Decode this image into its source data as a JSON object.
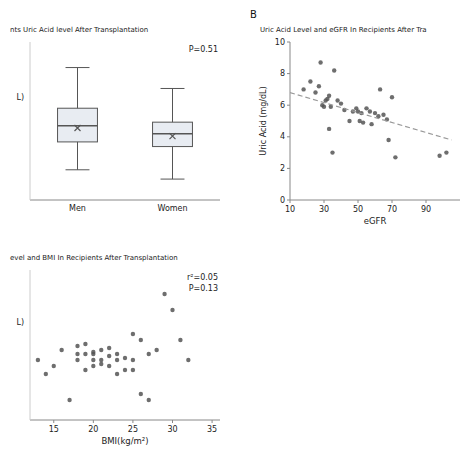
{
  "chart_data": [
    {
      "type": "box",
      "title": "nts Uric Acid level After Transplantation",
      "ylabel": "L)",
      "annotations": [
        "P=0.51"
      ],
      "categories": [
        "Men",
        "Women"
      ],
      "boxes": [
        {
          "median": 6.2,
          "q1": 5.5,
          "q3": 6.95,
          "whisker_low": 4.3,
          "whisker_high": 8.7,
          "mean": 6.1
        },
        {
          "median": 5.85,
          "q1": 5.3,
          "q3": 6.35,
          "whisker_low": 3.9,
          "whisker_high": 7.8,
          "mean": 5.75
        }
      ],
      "color": "#555555",
      "ylim": [
        3.0,
        9.8
      ],
      "tick_labels": "x"
    },
    {
      "type": "scatter",
      "title": "Uric Acid Level and eGFR In Recipients After Tra",
      "annotations": [
        "B"
      ],
      "xlabel": "eGFR",
      "ylabel": "Uric Acid (mg/dL)",
      "xlim": [
        10,
        110
      ],
      "ylim": [
        0,
        10
      ],
      "xticks": [
        10,
        30,
        50,
        70,
        90
      ],
      "yticks": [
        0,
        2,
        4,
        6,
        8,
        10
      ],
      "series": [
        {
          "type": "scatter",
          "color": "#555555",
          "x": [
            18,
            22,
            25,
            27,
            28,
            29,
            30,
            31,
            32,
            33,
            33,
            34,
            35,
            36,
            38,
            40,
            42,
            45,
            47,
            49,
            50,
            51,
            52,
            53,
            55,
            57,
            58,
            60,
            62,
            63,
            65,
            67,
            68,
            70,
            72,
            98,
            102
          ],
          "values": [
            7.0,
            7.5,
            6.8,
            7.2,
            8.7,
            6.0,
            5.9,
            6.3,
            6.4,
            4.5,
            6.6,
            5.9,
            3.0,
            8.2,
            6.3,
            6.1,
            5.7,
            5.0,
            5.6,
            5.8,
            5.6,
            5.0,
            5.5,
            4.9,
            5.8,
            5.6,
            4.8,
            5.5,
            5.3,
            7.0,
            5.4,
            5.1,
            3.8,
            6.5,
            2.7,
            2.8,
            3.0
          ]
        },
        {
          "type": "line",
          "color": "#999999",
          "line_style": "dashed",
          "x": [
            10,
            105
          ],
          "values": [
            6.8,
            3.8
          ]
        }
      ]
    },
    {
      "type": "scatter",
      "title": "evel and BMI In Recipients After Transplantation",
      "xlabel": "BMI(kg/m²)",
      "ylabel": "L)",
      "annotations": [
        "r²=0.05",
        "P=0.13"
      ],
      "xlim": [
        12,
        36
      ],
      "ylim": [
        2.5,
        10.0
      ],
      "xticks": [
        15,
        20,
        25,
        30,
        35
      ],
      "tick_labels": "x",
      "series": [
        {
          "type": "scatter",
          "color": "#555555",
          "x": [
            13,
            14,
            15,
            16,
            17,
            18,
            18,
            18,
            19,
            19,
            19,
            20,
            20,
            20,
            20,
            21,
            21,
            21,
            22,
            22,
            22,
            23,
            23,
            23,
            24,
            24,
            25,
            25,
            25,
            26,
            26,
            27,
            27,
            28,
            29,
            30,
            31,
            32
          ],
          "values": [
            5.5,
            4.8,
            5.2,
            6.0,
            3.5,
            5.8,
            6.2,
            5.5,
            5.0,
            5.8,
            6.3,
            5.2,
            5.5,
            5.8,
            5.9,
            5.3,
            6.0,
            5.5,
            5.2,
            5.7,
            6.1,
            5.5,
            5.8,
            4.8,
            5.0,
            5.6,
            6.8,
            5.5,
            5.0,
            3.8,
            6.5,
            5.8,
            3.5,
            6.0,
            8.8,
            8.0,
            6.5,
            5.5
          ]
        }
      ]
    }
  ]
}
